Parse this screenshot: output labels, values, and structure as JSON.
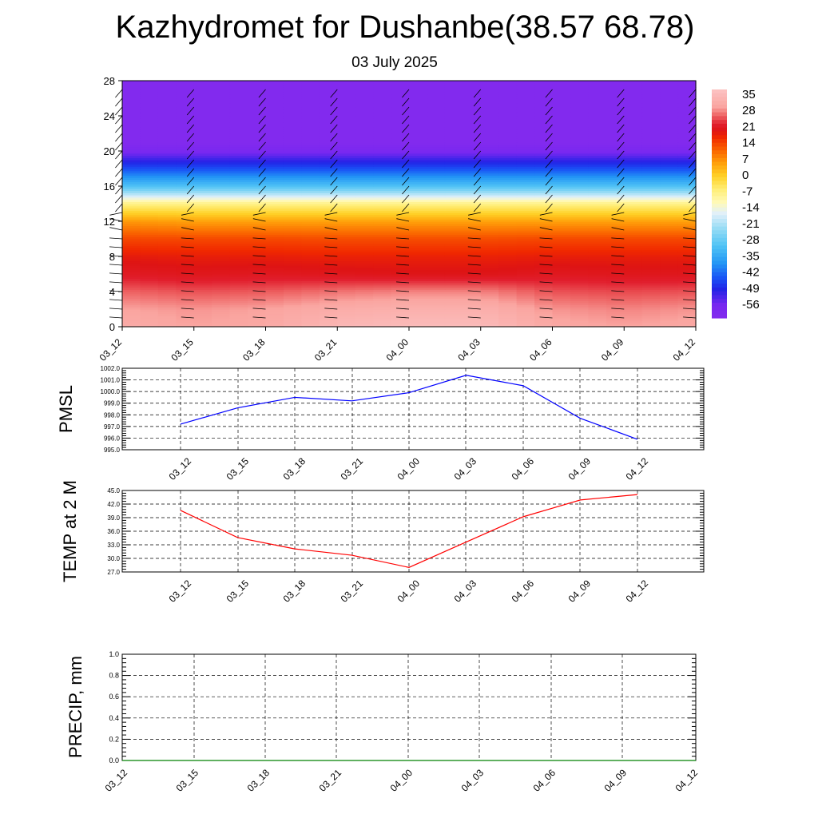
{
  "title": "Kazhydromet for Dushanbe(38.57 68.78)",
  "subtitle": "03 July 2025",
  "time_labels": [
    "03_12",
    "03_15",
    "03_18",
    "03_21",
    "04_00",
    "04_03",
    "04_06",
    "04_09",
    "04_12"
  ],
  "chart_data": [
    {
      "type": "heatmap",
      "name": "cross-section",
      "ylim": [
        0,
        28
      ],
      "yticks": [
        0,
        4,
        8,
        12,
        16,
        20,
        24,
        28
      ],
      "xticks": [
        "03_12",
        "03_15",
        "03_18",
        "03_21",
        "04_00",
        "04_03",
        "04_06",
        "04_09",
        "04_12"
      ],
      "colorbar": {
        "labels": [
          "35",
          "28",
          "21",
          "14",
          "7",
          "0",
          "-7",
          "-14",
          "-21",
          "-28",
          "-35",
          "-42",
          "-49",
          "-56"
        ],
        "range": [
          -63,
          42
        ]
      },
      "levels": [
        {
          "z": 0,
          "t": [
            36,
            34,
            35,
            39,
            40,
            40,
            35,
            34,
            35
          ]
        },
        {
          "z": 2,
          "t": [
            34,
            33,
            34,
            36,
            37,
            37,
            33,
            32,
            33
          ]
        },
        {
          "z": 4,
          "t": [
            30,
            29,
            29.5,
            31,
            32,
            32,
            29,
            28.5,
            29
          ]
        },
        {
          "z": 6,
          "t": [
            25,
            24,
            24.5,
            24,
            23.5,
            23.5,
            24.5,
            24,
            24
          ]
        },
        {
          "z": 8,
          "t": [
            22,
            21.5,
            21.5,
            21,
            21,
            21,
            21.5,
            21.5,
            21.5
          ]
        },
        {
          "z": 10,
          "t": [
            17,
            17,
            17,
            16.5,
            16.5,
            16.5,
            17,
            17,
            17
          ]
        },
        {
          "z": 12,
          "t": [
            9,
            8,
            8,
            8,
            8,
            8,
            8,
            8,
            8
          ]
        },
        {
          "z": 14,
          "t": [
            -5,
            -5,
            -5,
            -5,
            -5,
            -5,
            -5,
            -5,
            -5
          ]
        },
        {
          "z": 16,
          "t": [
            -30,
            -30,
            -30,
            -30,
            -30,
            -30,
            -30,
            -30,
            -30
          ]
        },
        {
          "z": 18,
          "t": [
            -45,
            -45,
            -45,
            -45,
            -45,
            -45,
            -45,
            -45,
            -45
          ]
        },
        {
          "z": 20,
          "t": [
            -58,
            -58,
            -58,
            -58,
            -58,
            -58,
            -58,
            -58,
            -58
          ]
        },
        {
          "z": 21,
          "t": [
            -63,
            -63,
            -63,
            -63,
            -63,
            -63,
            -63,
            -63,
            -63
          ]
        },
        {
          "z": 28,
          "t": [
            -63,
            -63,
            -63,
            -63,
            -63,
            -63,
            -63,
            -63,
            -63
          ]
        }
      ],
      "wind_barb_levels": [
        1,
        2,
        3,
        4,
        5,
        6,
        7,
        8,
        9,
        10,
        11,
        12,
        13,
        14,
        15,
        16,
        17,
        18,
        19,
        20,
        21,
        22,
        23,
        24,
        25,
        26,
        27
      ]
    },
    {
      "type": "line",
      "ylabel": "PMSL",
      "ylim": [
        995.0,
        1002.0
      ],
      "yticks": [
        "995.0",
        "996.0",
        "997.0",
        "998.0",
        "999.0",
        "1000.0",
        "1001.0",
        "1002.0"
      ],
      "x": [
        "03_12",
        "03_15",
        "03_18",
        "03_21",
        "04_00",
        "04_03",
        "04_06",
        "04_09",
        "04_12"
      ],
      "values": [
        997.2,
        998.6,
        999.5,
        999.2,
        999.9,
        1001.4,
        1000.5,
        997.7,
        995.9
      ],
      "color": "#0000ff",
      "grid": true
    },
    {
      "type": "line",
      "ylabel": "TEMP at 2 M",
      "ylim": [
        27.0,
        45.0
      ],
      "yticks": [
        "27.0",
        "30.0",
        "33.0",
        "36.0",
        "39.0",
        "42.0",
        "45.0"
      ],
      "x": [
        "03_12",
        "03_15",
        "03_18",
        "03_21",
        "04_00",
        "04_03",
        "04_06",
        "04_09",
        "04_12"
      ],
      "values": [
        40.6,
        34.6,
        32.1,
        30.7,
        28.0,
        33.6,
        39.2,
        42.9,
        44.1
      ],
      "color": "#ff0000",
      "grid": true
    },
    {
      "type": "line",
      "ylabel": "PRECIP, mm",
      "ylim": [
        0.0,
        1.0
      ],
      "yticks": [
        "0.0",
        "0.2",
        "0.4",
        "0.6",
        "0.8",
        "1.0"
      ],
      "x": [
        "03_12",
        "03_15",
        "03_18",
        "03_21",
        "04_00",
        "04_03",
        "04_06",
        "04_09",
        "04_12"
      ],
      "values": [
        0,
        0,
        0,
        0,
        0,
        0,
        0,
        0,
        0
      ],
      "color": "#008000",
      "grid": true
    }
  ]
}
